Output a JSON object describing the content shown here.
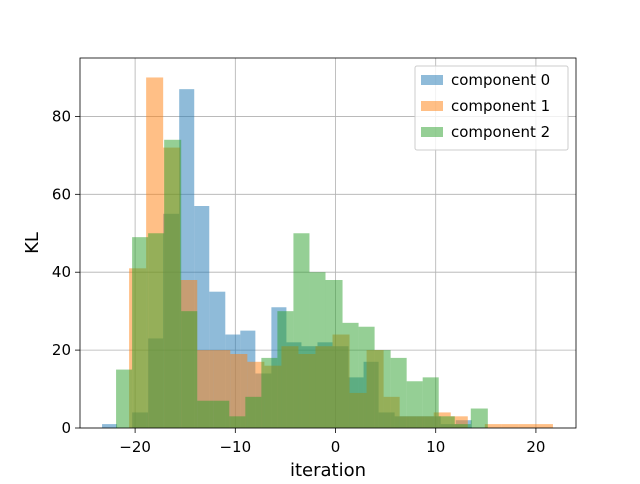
{
  "chart_data": {
    "type": "bar",
    "subtype": "overlapping-histogram",
    "title": "",
    "xlabel": "iteration",
    "ylabel": "KL",
    "xlim": [
      -25.5,
      24
    ],
    "ylim": [
      0,
      95
    ],
    "xticks": [
      -20,
      -10,
      0,
      10,
      20
    ],
    "xtick_labels": [
      "−20",
      "−10",
      "0",
      "10",
      "20"
    ],
    "yticks": [
      0,
      20,
      40,
      60,
      80
    ],
    "ytick_labels": [
      "0",
      "20",
      "40",
      "60",
      "80"
    ],
    "grid": true,
    "legend_position": "top-right",
    "bar_alpha": 0.5,
    "series": [
      {
        "name": "component 0",
        "color": "#1f77b4",
        "bins": [
          {
            "x0": -23.3,
            "x1": -21.8,
            "value": 1
          },
          {
            "x0": -21.8,
            "x1": -20.3,
            "value": 0
          },
          {
            "x0": -20.3,
            "x1": -18.7,
            "value": 4
          },
          {
            "x0": -18.7,
            "x1": -17.2,
            "value": 23
          },
          {
            "x0": -17.2,
            "x1": -15.6,
            "value": 55
          },
          {
            "x0": -15.6,
            "x1": -14.1,
            "value": 87
          },
          {
            "x0": -14.1,
            "x1": -12.6,
            "value": 57
          },
          {
            "x0": -12.6,
            "x1": -11.0,
            "value": 35
          },
          {
            "x0": -11.0,
            "x1": -9.5,
            "value": 24
          },
          {
            "x0": -9.5,
            "x1": -8.0,
            "value": 25
          },
          {
            "x0": -8.0,
            "x1": -6.4,
            "value": 14
          },
          {
            "x0": -6.4,
            "x1": -4.9,
            "value": 31
          },
          {
            "x0": -4.9,
            "x1": -3.4,
            "value": 22
          },
          {
            "x0": -3.4,
            "x1": -1.8,
            "value": 21
          },
          {
            "x0": -1.8,
            "x1": -0.3,
            "value": 22
          },
          {
            "x0": -0.3,
            "x1": 1.3,
            "value": 21
          },
          {
            "x0": 1.3,
            "x1": 2.8,
            "value": 13
          },
          {
            "x0": 2.8,
            "x1": 4.3,
            "value": 17
          },
          {
            "x0": 4.3,
            "x1": 5.9,
            "value": 4
          },
          {
            "x0": 5.9,
            "x1": 7.4,
            "value": 3
          },
          {
            "x0": 7.4,
            "x1": 8.9,
            "value": 3
          },
          {
            "x0": 8.9,
            "x1": 10.5,
            "value": 3
          },
          {
            "x0": 10.5,
            "x1": 12.0,
            "value": 1
          },
          {
            "x0": 12.0,
            "x1": 13.6,
            "value": 2
          }
        ]
      },
      {
        "name": "component 1",
        "color": "#ff7f0e",
        "bins": [
          {
            "x0": -20.6,
            "x1": -18.9,
            "value": 41
          },
          {
            "x0": -18.9,
            "x1": -17.2,
            "value": 90
          },
          {
            "x0": -17.2,
            "x1": -15.5,
            "value": 72
          },
          {
            "x0": -15.5,
            "x1": -13.8,
            "value": 38
          },
          {
            "x0": -13.8,
            "x1": -12.2,
            "value": 20
          },
          {
            "x0": -12.2,
            "x1": -10.5,
            "value": 20
          },
          {
            "x0": -10.5,
            "x1": -8.8,
            "value": 19
          },
          {
            "x0": -8.8,
            "x1": -7.1,
            "value": 17
          },
          {
            "x0": -7.1,
            "x1": -5.4,
            "value": 16
          },
          {
            "x0": -5.4,
            "x1": -3.7,
            "value": 21
          },
          {
            "x0": -3.7,
            "x1": -2.0,
            "value": 19
          },
          {
            "x0": -2.0,
            "x1": -0.3,
            "value": 21
          },
          {
            "x0": -0.3,
            "x1": 1.4,
            "value": 24
          },
          {
            "x0": 1.4,
            "x1": 3.1,
            "value": 9
          },
          {
            "x0": 3.1,
            "x1": 4.8,
            "value": 20
          },
          {
            "x0": 4.8,
            "x1": 6.4,
            "value": 8
          },
          {
            "x0": 6.4,
            "x1": 8.1,
            "value": 3
          },
          {
            "x0": 8.1,
            "x1": 9.8,
            "value": 3
          },
          {
            "x0": 9.8,
            "x1": 11.5,
            "value": 4
          },
          {
            "x0": 11.5,
            "x1": 13.2,
            "value": 3
          },
          {
            "x0": 13.2,
            "x1": 14.9,
            "value": 0
          },
          {
            "x0": 14.9,
            "x1": 16.6,
            "value": 1
          },
          {
            "x0": 16.6,
            "x1": 18.3,
            "value": 1
          },
          {
            "x0": 18.3,
            "x1": 20.0,
            "value": 1
          },
          {
            "x0": 20.0,
            "x1": 21.7,
            "value": 1
          }
        ]
      },
      {
        "name": "component 2",
        "color": "#2ca02c",
        "bins": [
          {
            "x0": -21.9,
            "x1": -20.3,
            "value": 15
          },
          {
            "x0": -20.3,
            "x1": -18.7,
            "value": 49
          },
          {
            "x0": -18.7,
            "x1": -17.1,
            "value": 50
          },
          {
            "x0": -17.1,
            "x1": -15.4,
            "value": 74
          },
          {
            "x0": -15.4,
            "x1": -13.8,
            "value": 30
          },
          {
            "x0": -13.8,
            "x1": -12.2,
            "value": 7
          },
          {
            "x0": -12.2,
            "x1": -10.6,
            "value": 7
          },
          {
            "x0": -10.6,
            "x1": -9.0,
            "value": 3
          },
          {
            "x0": -9.0,
            "x1": -7.4,
            "value": 8
          },
          {
            "x0": -7.4,
            "x1": -5.8,
            "value": 18
          },
          {
            "x0": -5.8,
            "x1": -4.2,
            "value": 30
          },
          {
            "x0": -4.2,
            "x1": -2.6,
            "value": 50
          },
          {
            "x0": -2.6,
            "x1": -1.0,
            "value": 40
          },
          {
            "x0": -1.0,
            "x1": 0.7,
            "value": 38
          },
          {
            "x0": 0.7,
            "x1": 2.3,
            "value": 27
          },
          {
            "x0": 2.3,
            "x1": 3.9,
            "value": 26
          },
          {
            "x0": 3.9,
            "x1": 5.5,
            "value": 20
          },
          {
            "x0": 5.5,
            "x1": 7.1,
            "value": 18
          },
          {
            "x0": 7.1,
            "x1": 8.7,
            "value": 12
          },
          {
            "x0": 8.7,
            "x1": 10.3,
            "value": 13
          },
          {
            "x0": 10.3,
            "x1": 11.9,
            "value": 3
          },
          {
            "x0": 11.9,
            "x1": 13.5,
            "value": 1
          },
          {
            "x0": 13.5,
            "x1": 15.2,
            "value": 5
          }
        ]
      }
    ]
  }
}
